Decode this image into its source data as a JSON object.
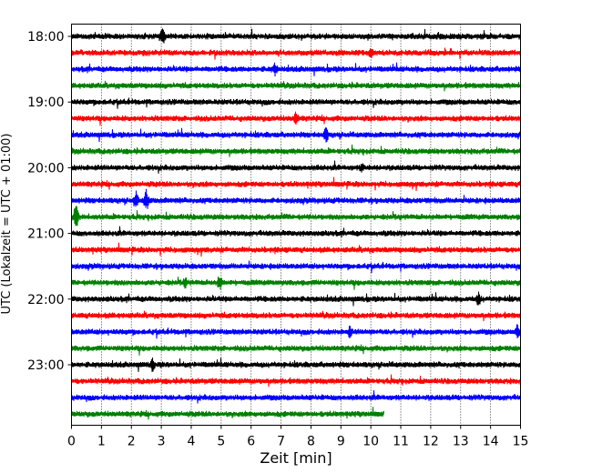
{
  "chart_data": {
    "type": "line",
    "title": "",
    "xlabel": "Zeit  [min]",
    "ylabel": "UTC (Lokalzeit = UTC + 01:00)",
    "xlim": [
      0,
      15
    ],
    "x_ticks": [
      0,
      1,
      2,
      3,
      4,
      5,
      6,
      7,
      8,
      9,
      10,
      11,
      12,
      13,
      14,
      15
    ],
    "y_tick_labels": [
      "18:00",
      "19:00",
      "20:00",
      "21:00",
      "22:00",
      "23:00"
    ],
    "grid": "vertical-dotted",
    "trace_interval_min": 15,
    "trace_colors": [
      "#000000",
      "#ff0000",
      "#0000ff",
      "#008000"
    ],
    "traces": [
      {
        "start": "18:00",
        "end_min": 15,
        "color": "#000000",
        "spikes": [
          [
            3.05,
            9
          ]
        ]
      },
      {
        "start": "18:15",
        "end_min": 15,
        "color": "#ff0000",
        "spikes": [
          [
            10.0,
            5
          ]
        ]
      },
      {
        "start": "18:30",
        "end_min": 15,
        "color": "#0000ff",
        "spikes": [
          [
            6.8,
            7
          ]
        ]
      },
      {
        "start": "18:45",
        "end_min": 15,
        "color": "#008000",
        "spikes": []
      },
      {
        "start": "19:00",
        "end_min": 15,
        "color": "#000000",
        "spikes": []
      },
      {
        "start": "19:15",
        "end_min": 15,
        "color": "#ff0000",
        "spikes": [
          [
            7.5,
            7
          ]
        ]
      },
      {
        "start": "19:30",
        "end_min": 15,
        "color": "#0000ff",
        "spikes": [
          [
            8.5,
            9
          ]
        ]
      },
      {
        "start": "19:45",
        "end_min": 15,
        "color": "#008000",
        "spikes": []
      },
      {
        "start": "20:00",
        "end_min": 15,
        "color": "#000000",
        "spikes": [
          [
            9.7,
            5
          ]
        ]
      },
      {
        "start": "20:15",
        "end_min": 15,
        "color": "#ff0000",
        "spikes": []
      },
      {
        "start": "20:30",
        "end_min": 15,
        "color": "#0000ff",
        "spikes": [
          [
            2.15,
            10
          ],
          [
            2.5,
            12
          ]
        ]
      },
      {
        "start": "20:45",
        "end_min": 15,
        "color": "#008000",
        "spikes": [
          [
            0.15,
            14
          ]
        ]
      },
      {
        "start": "21:00",
        "end_min": 15,
        "color": "#000000",
        "spikes": []
      },
      {
        "start": "21:15",
        "end_min": 15,
        "color": "#ff0000",
        "spikes": []
      },
      {
        "start": "21:30",
        "end_min": 15,
        "color": "#0000ff",
        "spikes": []
      },
      {
        "start": "21:45",
        "end_min": 15,
        "color": "#008000",
        "spikes": [
          [
            4.95,
            8
          ],
          [
            3.8,
            5
          ]
        ]
      },
      {
        "start": "22:00",
        "end_min": 15,
        "color": "#000000",
        "spikes": [
          [
            13.6,
            7
          ]
        ]
      },
      {
        "start": "22:15",
        "end_min": 15,
        "color": "#ff0000",
        "spikes": []
      },
      {
        "start": "22:30",
        "end_min": 15,
        "color": "#0000ff",
        "spikes": [
          [
            14.9,
            8
          ],
          [
            9.3,
            6
          ]
        ]
      },
      {
        "start": "22:45",
        "end_min": 15,
        "color": "#008000",
        "spikes": []
      },
      {
        "start": "23:00",
        "end_min": 15,
        "color": "#000000",
        "spikes": [
          [
            2.7,
            7
          ]
        ]
      },
      {
        "start": "23:15",
        "end_min": 15,
        "color": "#ff0000",
        "spikes": []
      },
      {
        "start": "23:30",
        "end_min": 15,
        "color": "#0000ff",
        "spikes": []
      },
      {
        "start": "23:45",
        "end_min": 10.45,
        "color": "#008000",
        "spikes": []
      }
    ]
  }
}
